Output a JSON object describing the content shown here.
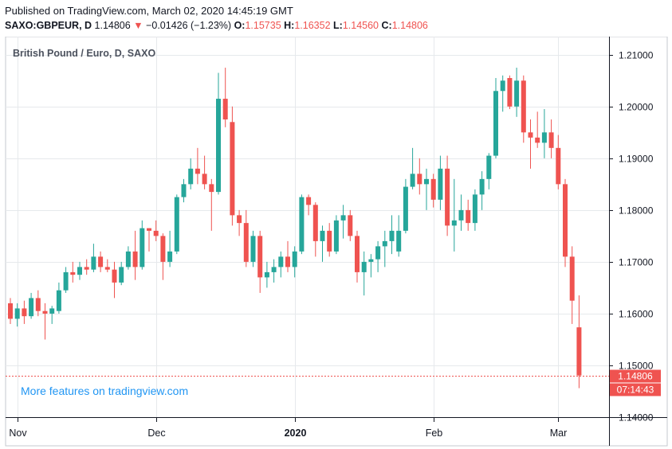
{
  "header": {
    "published_line": "Published on TradingView.com, March 02, 2020 14:45:19 GMT",
    "symbol": "SAXO:GBPEUR, D",
    "last": "1.14806",
    "arrow": "▼",
    "change": "−0.01426 (−1.23%)",
    "open_label": "O:",
    "open": "1.15735",
    "high_label": "H:",
    "high": "1.16352",
    "low_label": "L:",
    "low": "1.14560",
    "close_label": "C:",
    "close": "1.14806"
  },
  "chart_data": {
    "type": "candlestick",
    "title": "British Pound / Euro, D, SAXO",
    "watermark": "More features on tradingview.com",
    "ylim": [
      1.14,
      1.2135
    ],
    "y_ticks": [
      "1.21000",
      "1.20000",
      "1.19000",
      "1.18000",
      "1.17000",
      "1.16000",
      "1.15000",
      "1.14000"
    ],
    "x_ticks": [
      {
        "label": "Nov",
        "index": 1
      },
      {
        "label": "Dec",
        "index": 21
      },
      {
        "label": "2020",
        "index": 41
      },
      {
        "label": "Feb",
        "index": 61
      },
      {
        "label": "Mar",
        "index": 79
      }
    ],
    "last_price_label": "1.14806",
    "countdown_label": "07:14:43",
    "last_price": 1.14806,
    "grid": true,
    "colors": {
      "up": "#26a69a",
      "down": "#ef5350",
      "grid": "#e6e9ec",
      "text": "#4c525e",
      "watermark": "#2196f3"
    },
    "candles": [
      [
        1.162,
        1.163,
        1.158,
        1.159
      ],
      [
        1.159,
        1.162,
        1.1575,
        1.161
      ],
      [
        1.161,
        1.1625,
        1.158,
        1.1595
      ],
      [
        1.1595,
        1.164,
        1.159,
        1.163
      ],
      [
        1.163,
        1.1645,
        1.1595,
        1.1605
      ],
      [
        1.1605,
        1.162,
        1.155,
        1.16
      ],
      [
        1.16,
        1.1615,
        1.158,
        1.161
      ],
      [
        1.1605,
        1.166,
        1.16,
        1.1645
      ],
      [
        1.1645,
        1.169,
        1.164,
        1.168
      ],
      [
        1.168,
        1.17,
        1.166,
        1.1675
      ],
      [
        1.1675,
        1.17,
        1.1665,
        1.169
      ],
      [
        1.169,
        1.1705,
        1.1675,
        1.1685
      ],
      [
        1.1685,
        1.1735,
        1.168,
        1.171
      ],
      [
        1.171,
        1.172,
        1.168,
        1.169
      ],
      [
        1.169,
        1.1705,
        1.168,
        1.1685
      ],
      [
        1.1685,
        1.17,
        1.163,
        1.166
      ],
      [
        1.166,
        1.17,
        1.1655,
        1.169
      ],
      [
        1.169,
        1.173,
        1.1685,
        1.172
      ],
      [
        1.172,
        1.176,
        1.1665,
        1.169
      ],
      [
        1.169,
        1.178,
        1.1685,
        1.1765
      ],
      [
        1.1765,
        1.1765,
        1.172,
        1.176
      ],
      [
        1.176,
        1.178,
        1.174,
        1.175
      ],
      [
        1.175,
        1.1755,
        1.1665,
        1.17
      ],
      [
        1.17,
        1.176,
        1.169,
        1.172
      ],
      [
        1.172,
        1.183,
        1.1715,
        1.1825
      ],
      [
        1.1825,
        1.186,
        1.1815,
        1.185
      ],
      [
        1.185,
        1.19,
        1.184,
        1.188
      ],
      [
        1.188,
        1.192,
        1.185,
        1.187
      ],
      [
        1.187,
        1.1905,
        1.184,
        1.185
      ],
      [
        1.185,
        1.186,
        1.176,
        1.1835
      ],
      [
        1.1835,
        1.2065,
        1.183,
        1.2015
      ],
      [
        1.2015,
        1.2075,
        1.196,
        1.1975
      ],
      [
        1.197,
        1.2,
        1.177,
        1.179
      ],
      [
        1.179,
        1.18,
        1.175,
        1.1775
      ],
      [
        1.1775,
        1.18,
        1.169,
        1.17
      ],
      [
        1.17,
        1.176,
        1.169,
        1.175
      ],
      [
        1.175,
        1.176,
        1.164,
        1.167
      ],
      [
        1.167,
        1.17,
        1.165,
        1.168
      ],
      [
        1.168,
        1.1705,
        1.166,
        1.169
      ],
      [
        1.169,
        1.172,
        1.167,
        1.171
      ],
      [
        1.171,
        1.174,
        1.168,
        1.169
      ],
      [
        1.169,
        1.173,
        1.167,
        1.172
      ],
      [
        1.172,
        1.183,
        1.1715,
        1.1825
      ],
      [
        1.1825,
        1.183,
        1.179,
        1.181
      ],
      [
        1.181,
        1.1815,
        1.171,
        1.174
      ],
      [
        1.174,
        1.177,
        1.17,
        1.176
      ],
      [
        1.176,
        1.1775,
        1.171,
        1.172
      ],
      [
        1.172,
        1.179,
        1.1715,
        1.178
      ],
      [
        1.178,
        1.181,
        1.1745,
        1.179
      ],
      [
        1.179,
        1.18,
        1.174,
        1.175
      ],
      [
        1.175,
        1.176,
        1.166,
        1.168
      ],
      [
        1.168,
        1.172,
        1.1635,
        1.17
      ],
      [
        1.17,
        1.1715,
        1.167,
        1.1705
      ],
      [
        1.1705,
        1.174,
        1.168,
        1.173
      ],
      [
        1.173,
        1.176,
        1.169,
        1.174
      ],
      [
        1.174,
        1.179,
        1.1715,
        1.176
      ],
      [
        1.172,
        1.179,
        1.171,
        1.176
      ],
      [
        1.176,
        1.186,
        1.1755,
        1.1845
      ],
      [
        1.1845,
        1.192,
        1.184,
        1.187
      ],
      [
        1.187,
        1.19,
        1.183,
        1.185
      ],
      [
        1.185,
        1.188,
        1.18,
        1.186
      ],
      [
        1.186,
        1.187,
        1.1805,
        1.182
      ],
      [
        1.182,
        1.1905,
        1.18,
        1.188
      ],
      [
        1.188,
        1.1905,
        1.175,
        1.177
      ],
      [
        1.177,
        1.186,
        1.172,
        1.178
      ],
      [
        1.178,
        1.183,
        1.176,
        1.18
      ],
      [
        1.18,
        1.182,
        1.176,
        1.1775
      ],
      [
        1.1775,
        1.184,
        1.176,
        1.183
      ],
      [
        1.183,
        1.1875,
        1.18,
        1.186
      ],
      [
        1.186,
        1.191,
        1.184,
        1.1905
      ],
      [
        1.1905,
        1.2055,
        1.19,
        1.203
      ],
      [
        1.203,
        1.206,
        1.199,
        1.205
      ],
      [
        1.2055,
        1.206,
        1.1995,
        1.2
      ],
      [
        1.2,
        1.2075,
        1.198,
        1.205
      ],
      [
        1.205,
        1.206,
        1.193,
        1.195
      ],
      [
        1.195,
        1.1975,
        1.188,
        1.194
      ],
      [
        1.194,
        1.199,
        1.192,
        1.193
      ],
      [
        1.193,
        1.1995,
        1.19,
        1.195
      ],
      [
        1.195,
        1.1975,
        1.19,
        1.192
      ],
      [
        1.192,
        1.1945,
        1.184,
        1.185
      ],
      [
        1.185,
        1.186,
        1.169,
        1.171
      ],
      [
        1.171,
        1.173,
        1.158,
        1.1625
      ],
      [
        1.15735,
        1.16352,
        1.1456,
        1.14806
      ]
    ]
  }
}
